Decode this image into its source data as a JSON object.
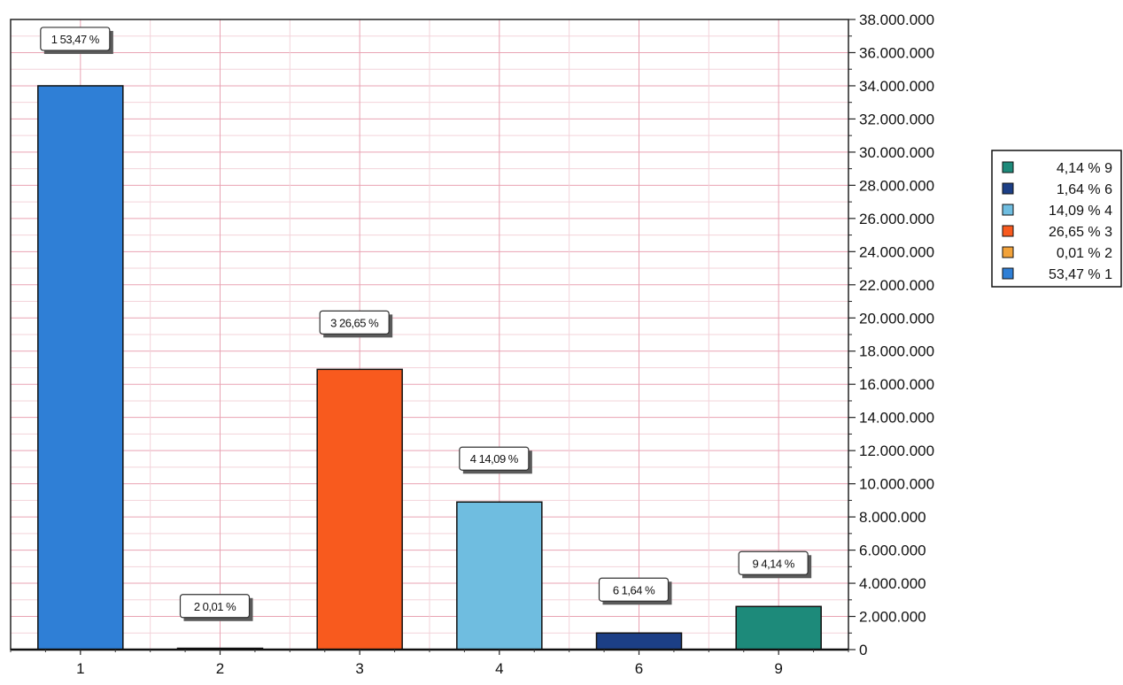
{
  "chart_data": {
    "type": "bar",
    "title": "",
    "xlabel": "",
    "ylabel": "",
    "categories": [
      "1",
      "2",
      "3",
      "4",
      "6",
      "9"
    ],
    "values": [
      34000000,
      12000,
      16900000,
      8900000,
      1000000,
      2600000
    ],
    "colors": [
      "#2f7fd6",
      "#f2a23a",
      "#f85a1e",
      "#6fbde0",
      "#1c3f86",
      "#1d8a7a"
    ],
    "data_labels": [
      "1 53,47 %",
      "2 0,01 %",
      "3 26,65 %",
      "4 14,09 %",
      "6 1,64 %",
      "9 4,14 %"
    ],
    "ylim": [
      0,
      38000000
    ],
    "yticks": [
      "0",
      "2.000.000",
      "4.000.000",
      "6.000.000",
      "8.000.000",
      "10.000.000",
      "12.000.000",
      "14.000.000",
      "16.000.000",
      "18.000.000",
      "20.000.000",
      "22.000.000",
      "24.000.000",
      "26.000.000",
      "28.000.000",
      "30.000.000",
      "32.000.000",
      "34.000.000",
      "36.000.000",
      "38.000.000"
    ],
    "y_axis_side": "right",
    "grid": true,
    "grid_color": "#e9a3b3",
    "legend_position": "right",
    "legend": [
      {
        "label": "4,14 % 9",
        "color": "#1d8a7a"
      },
      {
        "label": "1,64 % 6",
        "color": "#1c3f86"
      },
      {
        "label": "14,09 % 4",
        "color": "#6fbde0"
      },
      {
        "label": "26,65 % 3",
        "color": "#f85a1e"
      },
      {
        "label": "0,01 % 2",
        "color": "#f2a23a"
      },
      {
        "label": "53,47 % 1",
        "color": "#2f7fd6"
      }
    ]
  }
}
